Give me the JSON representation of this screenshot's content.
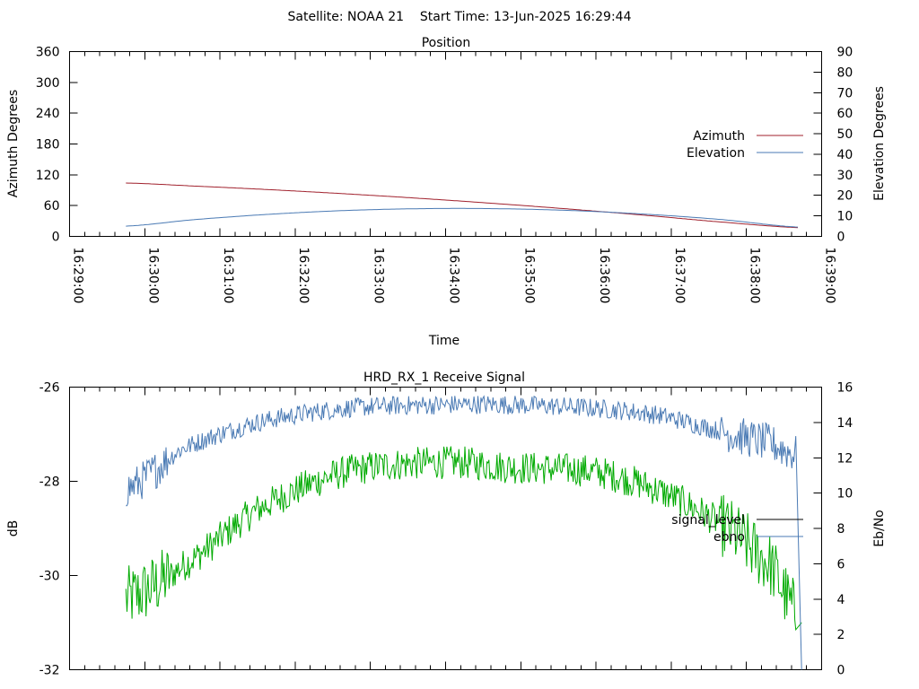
{
  "page_title": "Satellite: NOAA 21    Start Time: 13-Jun-2025 16:29:44",
  "chart_data": [
    {
      "type": "line",
      "title": "Position",
      "xlabel": "Time",
      "ylabel": "Azimuth Degrees",
      "y2label": "Elevation Degrees",
      "x_ticks": [
        "16:29:00",
        "16:30:00",
        "16:31:00",
        "16:32:00",
        "16:33:00",
        "16:34:00",
        "16:35:00",
        "16:36:00",
        "16:37:00",
        "16:38:00",
        "16:39:00"
      ],
      "x_range_seconds": [
        0,
        600
      ],
      "ylim": [
        0,
        360
      ],
      "y_ticks": [
        "0",
        "60",
        "120",
        "180",
        "240",
        "300",
        "360"
      ],
      "y2lim": [
        0,
        90
      ],
      "y2_ticks": [
        "0",
        "10",
        "20",
        "30",
        "40",
        "50",
        "60",
        "70",
        "80",
        "90"
      ],
      "legend_position": "right",
      "series": [
        {
          "name": "Azimuth",
          "axis": "y",
          "color": "#a0202c",
          "x_seconds": [
            45,
            100,
            160,
            220,
            280,
            340,
            400,
            460,
            520,
            582
          ],
          "values": [
            104,
            98,
            91,
            83,
            74,
            64,
            53,
            41,
            28,
            17
          ]
        },
        {
          "name": "Elevation",
          "axis": "y2",
          "color": "#4a7ab4",
          "x_seconds": [
            45,
            100,
            160,
            220,
            280,
            340,
            400,
            460,
            520,
            582
          ],
          "values": [
            5,
            8.2,
            10.8,
            12.6,
            13.5,
            13.5,
            12.6,
            10.8,
            8.2,
            4.5
          ]
        }
      ]
    },
    {
      "type": "line",
      "title": "HRD_RX_1 Receive Signal",
      "ylabel": "dB",
      "y2label": "Eb/No",
      "ylim": [
        -32,
        -26
      ],
      "y_ticks": [
        "-26",
        "-28",
        "-30",
        "-32"
      ],
      "y2lim": [
        0,
        16
      ],
      "y2_ticks": [
        "0",
        "2",
        "4",
        "6",
        "8",
        "10",
        "12",
        "14",
        "16"
      ],
      "x_range_seconds": [
        0,
        600
      ],
      "legend_position": "right",
      "series": [
        {
          "name": "signal_level",
          "axis": "y",
          "color": "#00aa00",
          "x_seconds": [
            45,
            90,
            150,
            220,
            300,
            350,
            420,
            470,
            520,
            560,
            580,
            584
          ],
          "values": [
            -30.5,
            -29.8,
            -28.6,
            -27.8,
            -27.6,
            -27.7,
            -27.8,
            -28.2,
            -28.9,
            -29.8,
            -30.8,
            -31.0
          ]
        },
        {
          "name": "ebno",
          "axis": "y2",
          "color": "#4a7ab4",
          "x_seconds": [
            45,
            90,
            150,
            220,
            300,
            350,
            420,
            470,
            520,
            560,
            580,
            584
          ],
          "values": [
            10.2,
            12.5,
            14.0,
            14.8,
            15.0,
            15.0,
            14.8,
            14.4,
            13.5,
            12.8,
            12.2,
            0
          ]
        }
      ]
    }
  ]
}
